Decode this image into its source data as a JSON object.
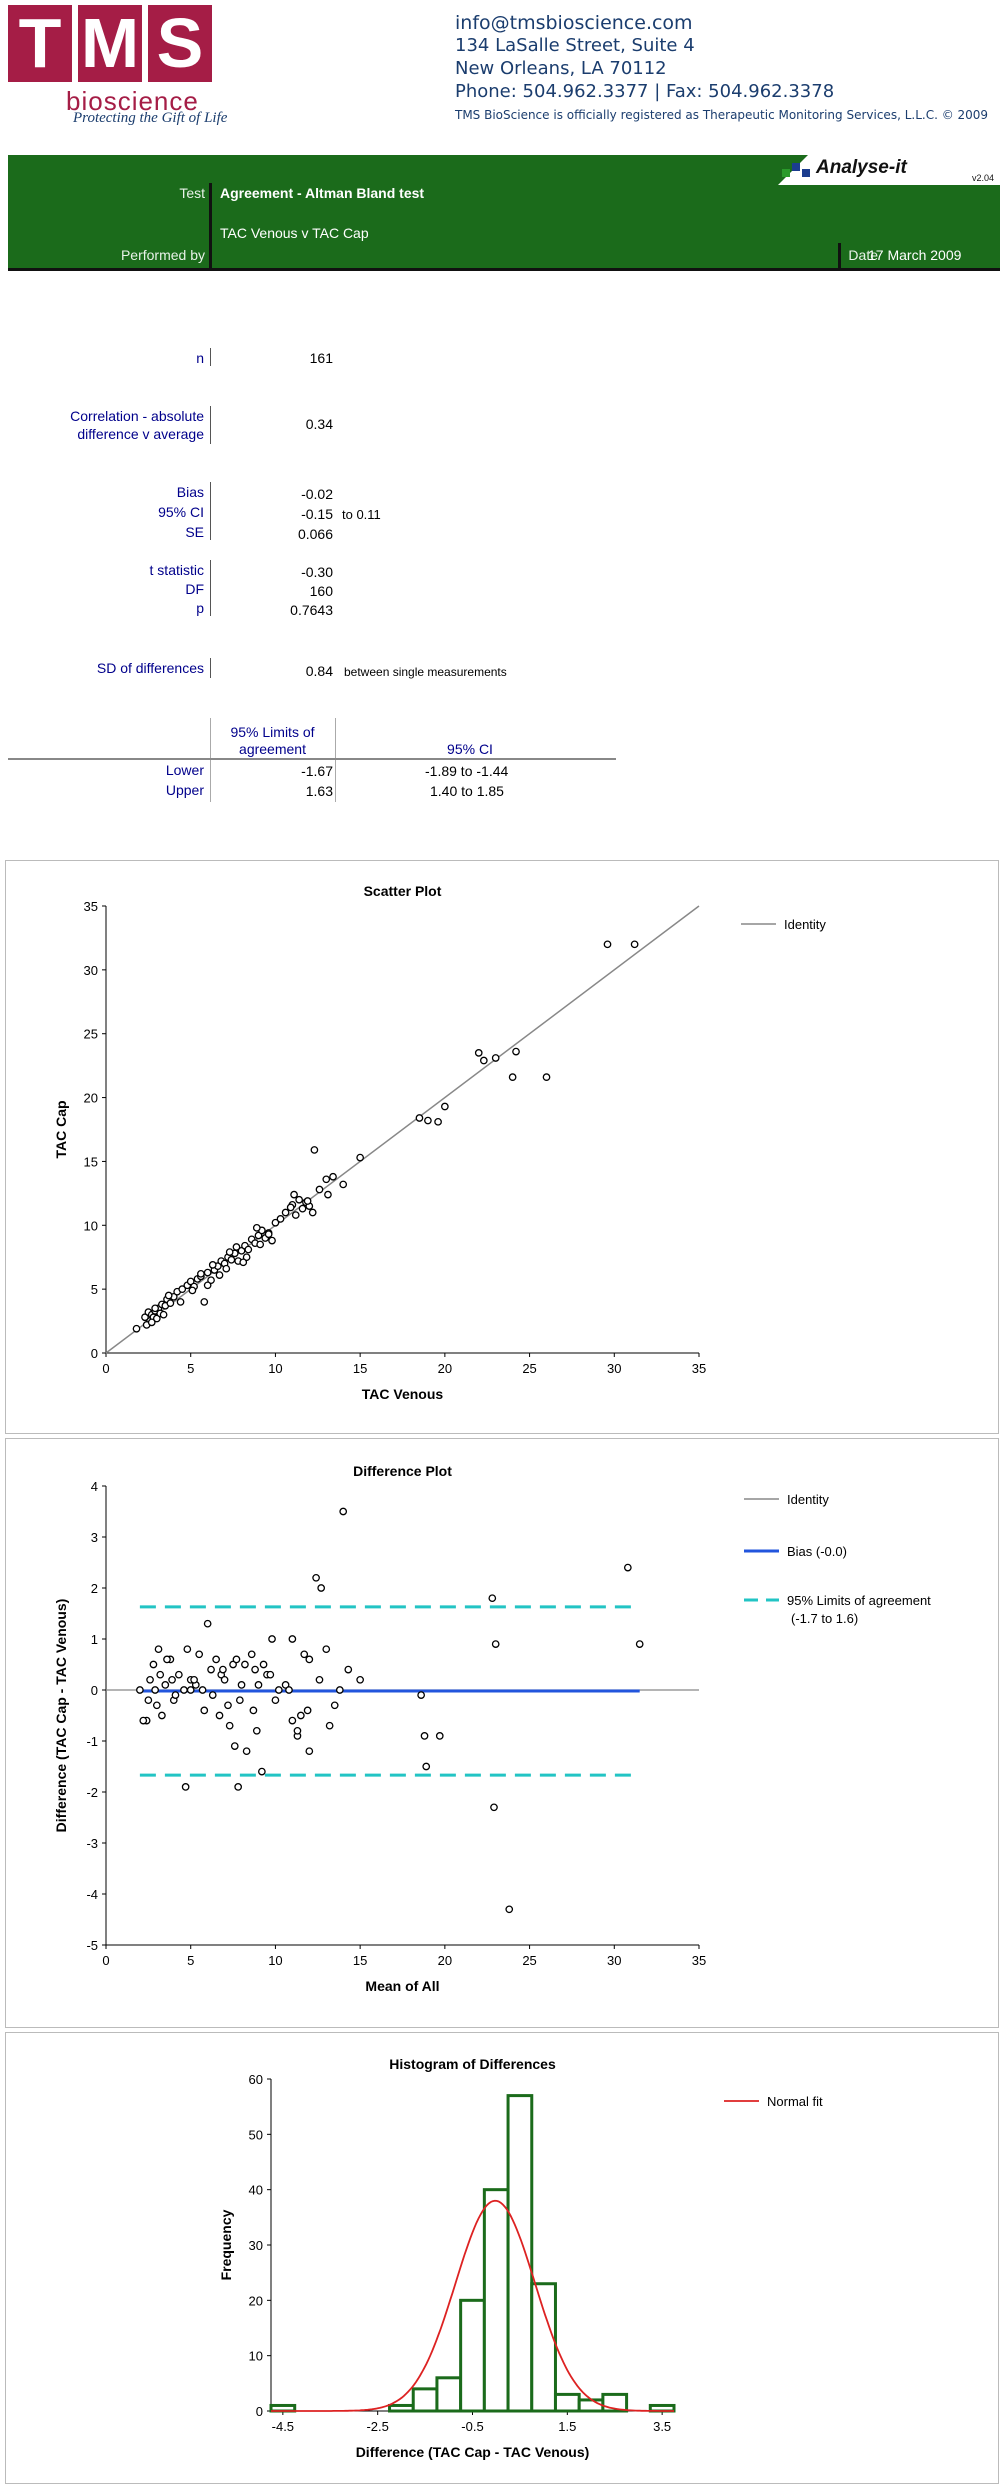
{
  "header": {
    "logo_letters": [
      "T",
      "M",
      "S"
    ],
    "logo_word": "bioscience",
    "tagline": "Protecting the Gift of Life",
    "email": "info@tmsbioscience.com",
    "address1": "134 LaSalle Street, Suite  4",
    "address2": "New Orleans, LA 70112",
    "phone": "Phone: 504.962.3377 | Fax: 504.962.3378",
    "registered": "TMS BioScience is officially registered as Therapeutic Monitoring Services, L.L.C. © 2009"
  },
  "banner": {
    "product": "Analyse-it",
    "version": "v2.04",
    "test_label": "Test",
    "test_value": "Agreement - Altman Bland test",
    "comparison": "TAC Venous  v  TAC Cap",
    "performed_label": "Performed by",
    "date_label": "Date",
    "date_value": "17 March 2009",
    "colors": {
      "green": "#1b6b1b",
      "brand": "#a51d46"
    }
  },
  "stats": {
    "n_label": "n",
    "n_value": "161",
    "corr_label1": "Correlation - absolute",
    "corr_label2": "difference v average",
    "corr_value": "0.34",
    "bias_label": "Bias",
    "bias_value": "-0.02",
    "ci_label": "95% CI",
    "ci_value": "-0.15",
    "ci_to": "to 0.11",
    "se_label": "SE",
    "se_value": "0.066",
    "t_label": "t statistic",
    "t_value": "-0.30",
    "df_label": "DF",
    "df_value": "160",
    "p_label": "p",
    "p_value": "0.7643",
    "sd_label": "SD of differences",
    "sd_value": "0.84",
    "sd_note": "between single measurements",
    "loa_header1": "95% Limits of",
    "loa_header2": "agreement",
    "loa_ci_header": "95% CI",
    "lower_label": "Lower",
    "lower_value": "-1.67",
    "lower_ci": "-1.89  to -1.44",
    "upper_label": "Upper",
    "upper_value": "1.63",
    "upper_ci": "1.40  to 1.85"
  },
  "chart_data": [
    {
      "type": "scatter",
      "title": "Scatter Plot",
      "xlabel": "TAC Venous",
      "ylabel": "TAC Cap",
      "xlim": [
        0,
        35
      ],
      "ylim": [
        0,
        35
      ],
      "xticks": [
        "0",
        "5",
        "10",
        "15",
        "20",
        "25",
        "30",
        "35"
      ],
      "yticks": [
        "0",
        "5",
        "10",
        "15",
        "20",
        "25",
        "30",
        "35"
      ],
      "legend": [
        "Identity"
      ],
      "legend_position": "top-right",
      "line_color": "#888888",
      "x": [
        1.8,
        2.3,
        2.5,
        2.6,
        2.7,
        2.8,
        2.9,
        3.0,
        3.1,
        3.2,
        3.3,
        3.5,
        3.6,
        3.8,
        4.0,
        4.2,
        4.5,
        4.8,
        5.0,
        5.2,
        5.4,
        5.6,
        5.8,
        6.0,
        6.2,
        6.4,
        6.6,
        6.8,
        7.0,
        7.2,
        7.4,
        7.6,
        7.8,
        8.0,
        8.2,
        8.4,
        8.6,
        8.8,
        9.0,
        9.2,
        9.4,
        9.6,
        9.8,
        10.0,
        10.3,
        10.6,
        11.0,
        11.2,
        11.4,
        11.6,
        11.8,
        12.0,
        12.3,
        12.6,
        13.0,
        13.4,
        14.0,
        15.0,
        18.5,
        19.0,
        19.6,
        20.0,
        22.0,
        22.3,
        23.0,
        24.0,
        24.2,
        26.0,
        29.6,
        31.2,
        2.4,
        2.9,
        3.4,
        4.4,
        5.6,
        6.0,
        6.3,
        7.1,
        7.7,
        8.3,
        8.9,
        9.6,
        11.1,
        12.2,
        13.1,
        2.7,
        3.7,
        5.1,
        6.7,
        7.3,
        8.1,
        9.1,
        10.9,
        11.9
      ],
      "y": [
        1.9,
        2.8,
        3.2,
        2.5,
        3.0,
        2.8,
        3.3,
        2.7,
        3.5,
        3.1,
        3.8,
        3.7,
        4.2,
        3.9,
        4.4,
        4.8,
        5.0,
        5.3,
        5.6,
        5.2,
        5.8,
        6.0,
        4.0,
        6.3,
        5.7,
        6.5,
        6.8,
        7.2,
        7.0,
        7.5,
        7.3,
        7.8,
        7.2,
        8.0,
        8.4,
        8.1,
        8.9,
        8.6,
        9.2,
        9.6,
        9.0,
        9.4,
        8.8,
        10.2,
        10.5,
        11.0,
        11.6,
        10.8,
        12.0,
        11.3,
        11.8,
        11.5,
        15.9,
        12.8,
        13.6,
        13.8,
        13.2,
        15.3,
        18.4,
        18.2,
        18.1,
        19.3,
        23.5,
        22.9,
        23.1,
        21.6,
        23.6,
        21.6,
        32.0,
        32.0,
        2.2,
        3.5,
        3.0,
        4.0,
        6.2,
        5.3,
        6.9,
        6.6,
        8.3,
        7.5,
        9.8,
        9.3,
        12.4,
        11.0,
        12.4,
        2.4,
        4.5,
        4.9,
        6.1,
        7.9,
        7.1,
        8.5,
        11.4,
        11.9
      ]
    },
    {
      "type": "scatter",
      "title": "Difference Plot",
      "xlabel": "Mean of All",
      "ylabel": "Difference (TAC Cap - TAC Venous)",
      "xlim": [
        0,
        35
      ],
      "ylim": [
        -5,
        4
      ],
      "xticks": [
        "0",
        "5",
        "10",
        "15",
        "20",
        "25",
        "30",
        "35"
      ],
      "yticks": [
        "-5",
        "-4",
        "-3",
        "-2",
        "-1",
        "0",
        "1",
        "2",
        "3",
        "4"
      ],
      "legend": [
        "Identity",
        "Bias (-0.0)",
        "95% Limits of agreement",
        "(-1.7 to 1.6)"
      ],
      "legend_position": "top-right",
      "bias": -0.02,
      "loa": [
        -1.67,
        1.63
      ],
      "colors": {
        "identity": "#888888",
        "bias": "#2255dd",
        "loa": "#22c4c4"
      },
      "x": [
        2.0,
        2.4,
        2.6,
        2.8,
        3.0,
        3.1,
        3.3,
        3.5,
        3.8,
        4.0,
        4.3,
        4.7,
        5.0,
        5.3,
        5.5,
        5.8,
        6.0,
        6.3,
        6.5,
        6.8,
        7.0,
        7.3,
        7.5,
        7.8,
        8.0,
        8.3,
        8.6,
        8.9,
        9.2,
        9.5,
        9.8,
        10.2,
        10.6,
        11.0,
        11.3,
        11.7,
        12.0,
        12.4,
        13.0,
        13.5,
        14.0,
        14.3,
        15.0,
        18.6,
        18.9,
        19.7,
        22.8,
        23.0,
        22.9,
        23.8,
        30.8,
        31.5,
        2.5,
        3.2,
        4.1,
        5.2,
        6.2,
        7.2,
        8.2,
        9.0,
        10.0,
        11.0,
        12.0,
        13.2,
        2.9,
        3.9,
        4.8,
        5.7,
        6.7,
        7.7,
        8.7,
        9.7,
        11.5,
        12.7,
        2.2,
        3.6,
        4.6,
        6.9,
        7.9,
        8.8,
        10.8,
        11.9,
        5.0,
        7.6,
        9.3,
        11.3,
        12.6,
        13.8,
        18.8
      ],
      "y": [
        0.0,
        -0.6,
        0.2,
        0.5,
        -0.3,
        0.8,
        -0.5,
        0.1,
        0.6,
        -0.2,
        0.3,
        -1.9,
        0.2,
        0.1,
        0.7,
        -0.4,
        1.3,
        -0.1,
        0.6,
        0.3,
        0.2,
        -0.7,
        0.5,
        -1.9,
        0.1,
        -1.2,
        0.7,
        -0.8,
        -1.6,
        0.3,
        1.0,
        0.0,
        0.1,
        1.0,
        -0.9,
        0.7,
        -1.2,
        2.2,
        0.8,
        -0.3,
        3.5,
        0.4,
        0.2,
        -0.1,
        -1.5,
        -0.9,
        1.8,
        0.9,
        -2.3,
        -4.3,
        2.4,
        0.9,
        -0.2,
        0.3,
        -0.1,
        0.2,
        0.4,
        -0.3,
        0.5,
        0.1,
        -0.2,
        -0.6,
        0.6,
        -0.7,
        0.0,
        0.2,
        0.8,
        0.0,
        -0.5,
        0.6,
        -0.4,
        0.3,
        -0.5,
        2.0,
        -0.6,
        0.6,
        0.0,
        0.4,
        -0.2,
        0.4,
        0.0,
        -0.4,
        0.0,
        -1.1,
        0.5,
        -0.8,
        0.2,
        0.0,
        -0.9
      ]
    },
    {
      "type": "bar",
      "title": "Histogram of Differences",
      "xlabel": "Difference (TAC Cap - TAC Venous)",
      "ylabel": "Frequency",
      "xticks": [
        "-4.5",
        "-2.5",
        "-0.5",
        "1.5",
        "3.5"
      ],
      "xtick_values": [
        -4.5,
        -2.5,
        -0.5,
        1.5,
        3.5
      ],
      "yticks": [
        "0",
        "10",
        "20",
        "30",
        "40",
        "50",
        "60"
      ],
      "ylim": [
        0,
        60
      ],
      "bin_width": 0.5,
      "bin_starts": [
        -4.75,
        -4.25,
        -3.75,
        -3.25,
        -2.75,
        -2.25,
        -1.75,
        -1.25,
        -0.75,
        -0.25,
        0.25,
        0.75,
        1.25,
        1.75,
        2.25,
        2.75,
        3.25
      ],
      "values": [
        1,
        0,
        0,
        0,
        0,
        1,
        4,
        6,
        20,
        40,
        57,
        23,
        3,
        2,
        3,
        0,
        1
      ],
      "xlim": [
        -4.75,
        3.75
      ],
      "legend": [
        "Normal fit"
      ],
      "legend_position": "top-right",
      "colors": {
        "bar": "#1b6b1b",
        "fit": "#dd2222"
      },
      "fit_mean": -0.02,
      "fit_sd": 0.84,
      "fit_peak": 38
    }
  ]
}
